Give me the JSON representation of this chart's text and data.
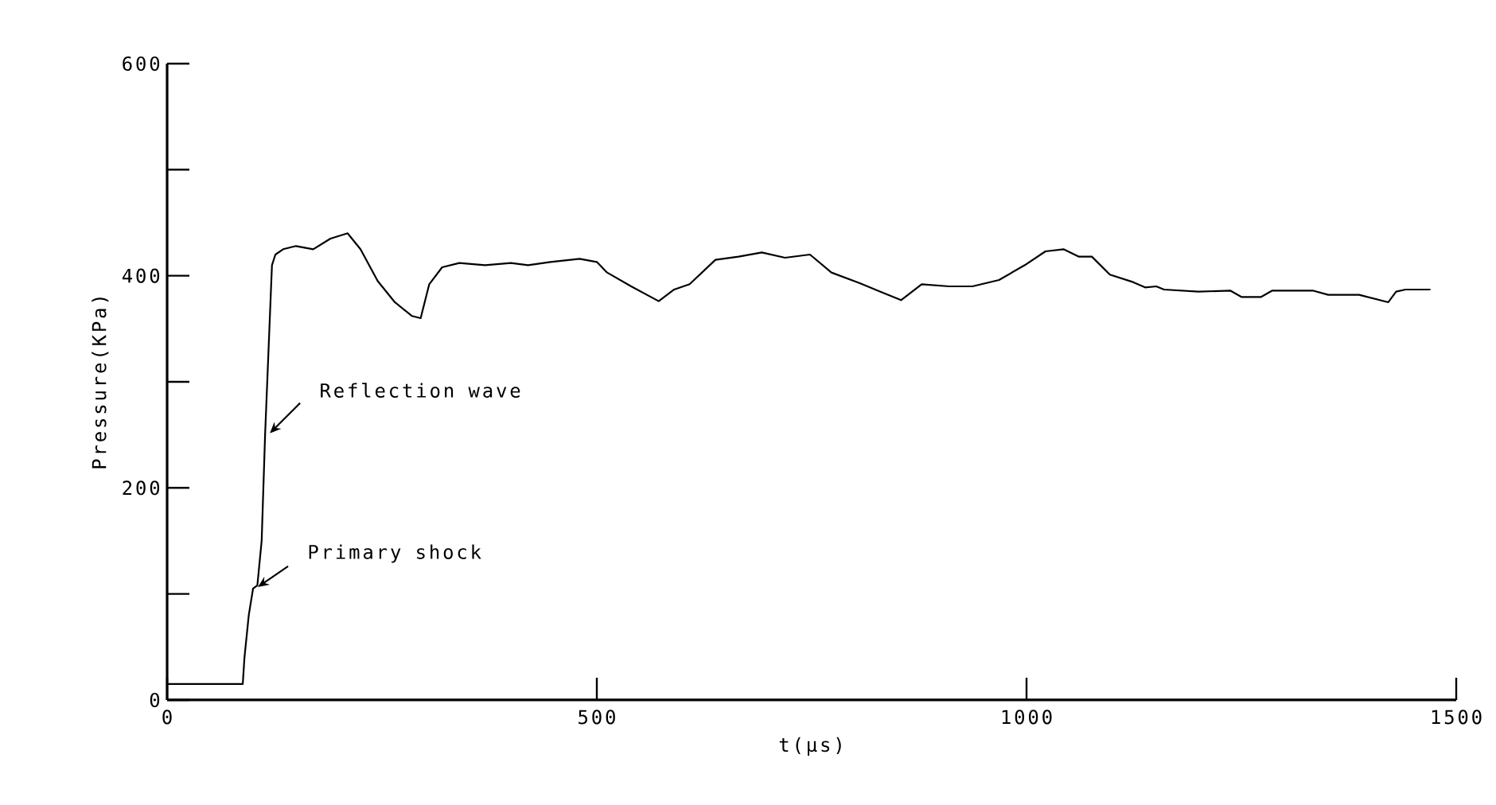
{
  "chart_data": {
    "type": "line",
    "xlabel": "t(μs)",
    "ylabel": "Pressure(KPa)",
    "xlim": [
      0,
      1500
    ],
    "ylim": [
      0,
      600
    ],
    "xticks": [
      0,
      500,
      1000,
      1500
    ],
    "yticks": [
      0,
      {
        "value": 100,
        "label": null
      },
      200,
      {
        "value": 300,
        "label": null
      },
      400,
      {
        "value": 500,
        "label": null
      },
      600
    ],
    "marker": "none",
    "line_style": "solid",
    "series": [
      {
        "color": "#000000",
        "x": [
          0,
          20,
          88,
          90,
          95,
          100,
          105,
          110,
          114,
          118,
          122,
          126,
          135,
          150,
          170,
          190,
          210,
          225,
          245,
          265,
          285,
          295,
          305,
          320,
          340,
          370,
          400,
          420,
          446,
          480,
          500,
          512,
          540,
          572,
          590,
          608,
          638,
          665,
          692,
          719,
          748,
          773,
          806,
          830,
          854,
          878,
          910,
          937,
          968,
          998,
          1022,
          1043,
          1061,
          1076,
          1097,
          1124,
          1138,
          1151,
          1160,
          1200,
          1237,
          1250,
          1273,
          1286,
          1333,
          1351,
          1387,
          1421,
          1430,
          1441,
          1470
        ],
        "values": [
          15,
          15,
          15,
          40,
          80,
          105,
          108,
          150,
          250,
          330,
          410,
          420,
          425,
          428,
          425,
          435,
          440,
          425,
          395,
          375,
          362,
          360,
          392,
          408,
          412,
          410,
          412,
          410,
          413,
          416,
          413,
          403,
          390,
          376,
          387,
          392,
          415,
          418,
          422,
          417,
          420,
          403,
          393,
          385,
          377,
          392,
          390,
          390,
          396,
          410,
          423,
          425,
          418,
          418,
          401,
          394,
          389,
          390,
          387,
          385,
          386,
          380,
          380,
          386,
          386,
          382,
          382,
          375,
          385,
          387,
          387
        ]
      }
    ],
    "annotations": [
      {
        "text": "Reflection wave",
        "x": 114,
        "y": 250
      },
      {
        "text": "Primary shock",
        "x": 100,
        "y": 105
      }
    ]
  }
}
